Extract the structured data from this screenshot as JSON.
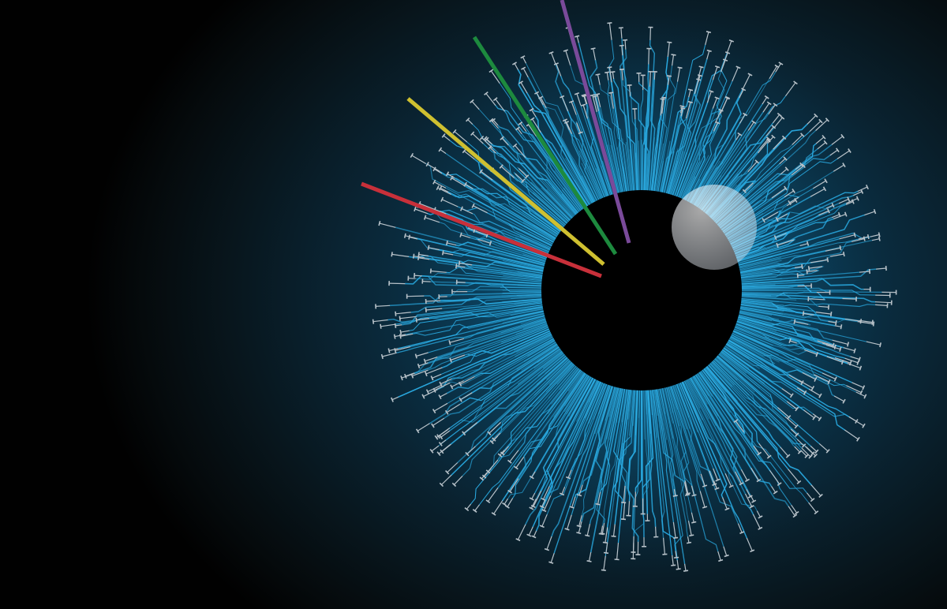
{
  "illustration": {
    "subject": "circuit-iris-eye",
    "colors": {
      "background_dark": "#010101",
      "background_glow": "#0b3e58",
      "circuit_trace": "#29a9e0",
      "circuit_pad": "#b8c2c9",
      "pupil": "#000000",
      "highlight": "#dfe6ef"
    },
    "light_beams": [
      {
        "name": "red-beam",
        "color": "#c8303a"
      },
      {
        "name": "yellow-beam",
        "color": "#cfc030"
      },
      {
        "name": "green-beam",
        "color": "#1d8a3e"
      },
      {
        "name": "purple-beam",
        "color": "#7a4a9a"
      }
    ]
  }
}
